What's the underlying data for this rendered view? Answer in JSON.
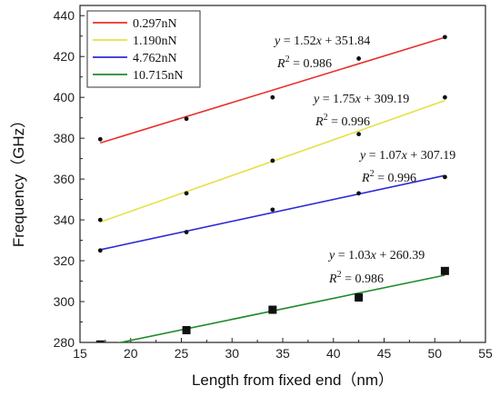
{
  "chart_data": {
    "type": "scatter",
    "xlabel": "Length from fixed end（nm）",
    "ylabel": "Frequency（GHz）",
    "xlim": [
      15,
      55
    ],
    "ylim": [
      280,
      445
    ],
    "x_ticks": [
      15,
      20,
      25,
      30,
      35,
      40,
      45,
      50,
      55
    ],
    "y_ticks": [
      280,
      300,
      320,
      340,
      360,
      380,
      400,
      420,
      440
    ],
    "grid": false,
    "legend_placement": "top-left",
    "series": [
      {
        "name": "0.297nN",
        "color": "#e8302a",
        "marker": "dot",
        "x": [
          17,
          25.5,
          34,
          42.5,
          51
        ],
        "y": [
          379.5,
          389.5,
          400,
          419,
          429.5
        ],
        "fit": {
          "slope": 1.52,
          "intercept": 351.84,
          "x_range": [
            17,
            51
          ]
        },
        "equation": {
          "y_var": "y",
          "eq_text": " = 1.52",
          "x_var": "x",
          "tail_text": " + 351.84"
        },
        "r2": {
          "r_var": "R",
          "sup": "2",
          "value_text": " = 0.986"
        }
      },
      {
        "name": "1.190nN",
        "color": "#e6e04a",
        "marker": "dot",
        "x": [
          17,
          25.5,
          34,
          42.5,
          51
        ],
        "y": [
          340,
          353,
          369,
          382,
          400
        ],
        "fit": {
          "slope": 1.75,
          "intercept": 309.19,
          "x_range": [
            17,
            51
          ]
        },
        "equation": {
          "y_var": "y",
          "eq_text": " = 1.75",
          "x_var": "x",
          "tail_text": " + 309.19"
        },
        "r2": {
          "r_var": "R",
          "sup": "2",
          "value_text": " = 0.996"
        }
      },
      {
        "name": "4.762nN",
        "color": "#2b2bd8",
        "marker": "dot",
        "x": [
          17,
          25.5,
          34,
          42.5,
          51
        ],
        "y": [
          325,
          334,
          345,
          353,
          361
        ],
        "fit": {
          "slope": 1.07,
          "intercept": 307.19,
          "x_range": [
            17,
            51
          ]
        },
        "equation": {
          "y_var": "y",
          "eq_text": " = 1.07",
          "x_var": "x",
          "tail_text": " + 307.19"
        },
        "r2": {
          "r_var": "R",
          "sup": "2",
          "value_text": " = 0.996"
        }
      },
      {
        "name": "10.715nN",
        "color": "#1f8a2a",
        "marker": "square",
        "x": [
          17,
          25.5,
          34,
          42.5,
          51
        ],
        "y": [
          279,
          286,
          296,
          302,
          315
        ],
        "fit": {
          "slope": 1.03,
          "intercept": 260.39,
          "x_range": [
            17,
            51
          ]
        },
        "equation": {
          "y_var": "y",
          "eq_text": " = 1.03",
          "x_var": "x",
          "tail_text": " + 260.39"
        },
        "r2": {
          "r_var": "R",
          "sup": "2",
          "value_text": " = 0.986"
        }
      }
    ]
  }
}
